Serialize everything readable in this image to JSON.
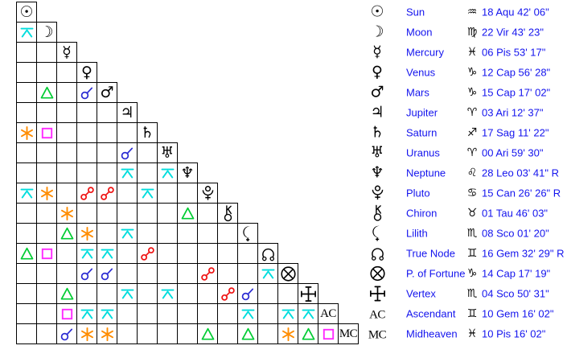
{
  "aspect_colors": {
    "conjunction": "#2a2ad2",
    "opposition": "#ee1111",
    "trine": "#00cc33",
    "square": "#ff2bff",
    "sextile": "#ff8c00",
    "quincunx": "#00dddd"
  },
  "grid": {
    "planets": [
      {
        "id": "sun",
        "name": "Sun",
        "glyph": "char:☉"
      },
      {
        "id": "moon",
        "name": "Moon",
        "glyph": "char:☽"
      },
      {
        "id": "mercury",
        "name": "Mercury",
        "glyph": "char:☿"
      },
      {
        "id": "venus",
        "name": "Venus",
        "glyph": "char:♀"
      },
      {
        "id": "mars",
        "name": "Mars",
        "glyph": "char:♂"
      },
      {
        "id": "jupiter",
        "name": "Jupiter",
        "glyph": "char:♃"
      },
      {
        "id": "saturn",
        "name": "Saturn",
        "glyph": "char:♄"
      },
      {
        "id": "uranus",
        "name": "Uranus",
        "glyph": "char:♅"
      },
      {
        "id": "neptune",
        "name": "Neptune",
        "glyph": "char:♆"
      },
      {
        "id": "pluto",
        "name": "Pluto",
        "glyph": "svg:pluto"
      },
      {
        "id": "chiron",
        "name": "Chiron",
        "glyph": "svg:chiron"
      },
      {
        "id": "lilith",
        "name": "Lilith",
        "glyph": "svg:lilith"
      },
      {
        "id": "true-node",
        "name": "True Node",
        "glyph": "svg:truenode"
      },
      {
        "id": "fortune",
        "name": "P. of Fortune",
        "glyph": "svg:fortune"
      },
      {
        "id": "vertex",
        "name": "Vertex",
        "glyph": "svg:vertex"
      },
      {
        "id": "ascendant",
        "name": "Ascendant",
        "glyph": "text:AC"
      },
      {
        "id": "midheaven",
        "name": "Midheaven",
        "glyph": "text:MC"
      }
    ]
  },
  "legend": {
    "rows": [
      {
        "sign": "♒",
        "position": "18 Aqu 42' 06\""
      },
      {
        "sign": "♍",
        "position": "22 Vir 43' 23\""
      },
      {
        "sign": "♓",
        "position": "06 Pis 53' 17\""
      },
      {
        "sign": "♑",
        "position": "12 Cap 56' 28\""
      },
      {
        "sign": "♑",
        "position": "15 Cap 17' 02\""
      },
      {
        "sign": "♈",
        "position": "03 Ari 12' 37\""
      },
      {
        "sign": "♐",
        "position": "17 Sag 11' 22\""
      },
      {
        "sign": "♈",
        "position": "00 Ari 59' 30\""
      },
      {
        "sign": "♌",
        "position": "28 Leo 03' 41\" R"
      },
      {
        "sign": "♋",
        "position": "15 Can 26' 26\" R"
      },
      {
        "sign": "♉",
        "position": "01 Tau 46' 03\""
      },
      {
        "sign": "♏",
        "position": "08 Sco 01' 20\""
      },
      {
        "sign": "♊",
        "position": "16 Gem 32' 29\" R"
      },
      {
        "sign": "♑",
        "position": "14 Cap 17' 19\""
      },
      {
        "sign": "♏",
        "position": "04 Sco 50' 31\""
      },
      {
        "sign": "♊",
        "position": "10 Gem 16' 02\""
      },
      {
        "sign": "♓",
        "position": "10 Pis 16' 02\""
      }
    ]
  },
  "chart_data": {
    "type": "table",
    "title": "Natal planet positions with triangular aspect grid (aspectarian)",
    "positions": [
      {
        "planet": "Sun",
        "value": "18 Aqu 42' 06\""
      },
      {
        "planet": "Moon",
        "value": "22 Vir 43' 23\""
      },
      {
        "planet": "Mercury",
        "value": "06 Pis 53' 17\""
      },
      {
        "planet": "Venus",
        "value": "12 Cap 56' 28\""
      },
      {
        "planet": "Mars",
        "value": "15 Cap 17' 02\""
      },
      {
        "planet": "Jupiter",
        "value": "03 Ari 12' 37\""
      },
      {
        "planet": "Saturn",
        "value": "17 Sag 11' 22\""
      },
      {
        "planet": "Uranus",
        "value": "00 Ari 59' 30\""
      },
      {
        "planet": "Neptune",
        "value": "28 Leo 03' 41\" R"
      },
      {
        "planet": "Pluto",
        "value": "15 Can 26' 26\" R"
      },
      {
        "planet": "Chiron",
        "value": "01 Tau 46' 03\""
      },
      {
        "planet": "Lilith",
        "value": "08 Sco 01' 20\""
      },
      {
        "planet": "True Node",
        "value": "16 Gem 32' 29\" R"
      },
      {
        "planet": "P. of Fortune",
        "value": "14 Cap 17' 19\""
      },
      {
        "planet": "Vertex",
        "value": "04 Sco 50' 31\""
      },
      {
        "planet": "Ascendant",
        "value": "10 Gem 16' 02\""
      },
      {
        "planet": "Midheaven",
        "value": "10 Pis 16' 02\""
      }
    ],
    "aspects": [
      {
        "row": 1,
        "col": 0,
        "aspect": "quincunx",
        "between": [
          "Moon",
          "Sun"
        ]
      },
      {
        "row": 4,
        "col": 1,
        "aspect": "trine",
        "between": [
          "Mars",
          "Moon"
        ]
      },
      {
        "row": 4,
        "col": 3,
        "aspect": "conjunction",
        "between": [
          "Mars",
          "Venus"
        ]
      },
      {
        "row": 6,
        "col": 0,
        "aspect": "sextile",
        "between": [
          "Saturn",
          "Sun"
        ]
      },
      {
        "row": 6,
        "col": 1,
        "aspect": "square",
        "between": [
          "Saturn",
          "Moon"
        ]
      },
      {
        "row": 7,
        "col": 5,
        "aspect": "conjunction",
        "between": [
          "Uranus",
          "Jupiter"
        ]
      },
      {
        "row": 8,
        "col": 5,
        "aspect": "quincunx",
        "between": [
          "Neptune",
          "Jupiter"
        ]
      },
      {
        "row": 8,
        "col": 7,
        "aspect": "quincunx",
        "between": [
          "Neptune",
          "Uranus"
        ]
      },
      {
        "row": 9,
        "col": 0,
        "aspect": "quincunx",
        "between": [
          "Pluto",
          "Sun"
        ]
      },
      {
        "row": 9,
        "col": 1,
        "aspect": "sextile",
        "between": [
          "Pluto",
          "Moon"
        ]
      },
      {
        "row": 9,
        "col": 3,
        "aspect": "opposition",
        "between": [
          "Pluto",
          "Venus"
        ]
      },
      {
        "row": 9,
        "col": 4,
        "aspect": "opposition",
        "between": [
          "Pluto",
          "Mars"
        ]
      },
      {
        "row": 9,
        "col": 6,
        "aspect": "quincunx",
        "between": [
          "Pluto",
          "Saturn"
        ]
      },
      {
        "row": 10,
        "col": 2,
        "aspect": "sextile",
        "between": [
          "Chiron",
          "Mercury"
        ]
      },
      {
        "row": 10,
        "col": 8,
        "aspect": "trine",
        "between": [
          "Chiron",
          "Neptune"
        ]
      },
      {
        "row": 11,
        "col": 2,
        "aspect": "trine",
        "between": [
          "Lilith",
          "Mercury"
        ]
      },
      {
        "row": 11,
        "col": 3,
        "aspect": "sextile",
        "between": [
          "Lilith",
          "Venus"
        ]
      },
      {
        "row": 11,
        "col": 5,
        "aspect": "quincunx",
        "between": [
          "Lilith",
          "Jupiter"
        ]
      },
      {
        "row": 12,
        "col": 0,
        "aspect": "trine",
        "between": [
          "True Node",
          "Sun"
        ]
      },
      {
        "row": 12,
        "col": 1,
        "aspect": "square",
        "between": [
          "True Node",
          "Moon"
        ]
      },
      {
        "row": 12,
        "col": 3,
        "aspect": "quincunx",
        "between": [
          "True Node",
          "Venus"
        ]
      },
      {
        "row": 12,
        "col": 4,
        "aspect": "quincunx",
        "between": [
          "True Node",
          "Mars"
        ]
      },
      {
        "row": 12,
        "col": 6,
        "aspect": "opposition",
        "between": [
          "True Node",
          "Saturn"
        ]
      },
      {
        "row": 13,
        "col": 3,
        "aspect": "conjunction",
        "between": [
          "P. of Fortune",
          "Venus"
        ]
      },
      {
        "row": 13,
        "col": 4,
        "aspect": "conjunction",
        "between": [
          "P. of Fortune",
          "Mars"
        ]
      },
      {
        "row": 13,
        "col": 9,
        "aspect": "opposition",
        "between": [
          "P. of Fortune",
          "Pluto"
        ]
      },
      {
        "row": 13,
        "col": 12,
        "aspect": "quincunx",
        "between": [
          "P. of Fortune",
          "True Node"
        ]
      },
      {
        "row": 14,
        "col": 2,
        "aspect": "trine",
        "between": [
          "Vertex",
          "Mercury"
        ]
      },
      {
        "row": 14,
        "col": 5,
        "aspect": "quincunx",
        "between": [
          "Vertex",
          "Jupiter"
        ]
      },
      {
        "row": 14,
        "col": 7,
        "aspect": "quincunx",
        "between": [
          "Vertex",
          "Uranus"
        ]
      },
      {
        "row": 14,
        "col": 10,
        "aspect": "opposition",
        "between": [
          "Vertex",
          "Chiron"
        ]
      },
      {
        "row": 14,
        "col": 11,
        "aspect": "conjunction",
        "between": [
          "Vertex",
          "Lilith"
        ]
      },
      {
        "row": 15,
        "col": 2,
        "aspect": "square",
        "between": [
          "Ascendant",
          "Mercury"
        ]
      },
      {
        "row": 15,
        "col": 3,
        "aspect": "quincunx",
        "between": [
          "Ascendant",
          "Venus"
        ]
      },
      {
        "row": 15,
        "col": 4,
        "aspect": "quincunx",
        "between": [
          "Ascendant",
          "Mars"
        ]
      },
      {
        "row": 15,
        "col": 11,
        "aspect": "quincunx",
        "between": [
          "Ascendant",
          "Lilith"
        ]
      },
      {
        "row": 15,
        "col": 13,
        "aspect": "quincunx",
        "between": [
          "Ascendant",
          "P. of Fortune"
        ]
      },
      {
        "row": 15,
        "col": 14,
        "aspect": "quincunx",
        "between": [
          "Ascendant",
          "Vertex"
        ]
      },
      {
        "row": 16,
        "col": 2,
        "aspect": "conjunction",
        "between": [
          "Midheaven",
          "Mercury"
        ]
      },
      {
        "row": 16,
        "col": 3,
        "aspect": "sextile",
        "between": [
          "Midheaven",
          "Venus"
        ]
      },
      {
        "row": 16,
        "col": 4,
        "aspect": "sextile",
        "between": [
          "Midheaven",
          "Mars"
        ]
      },
      {
        "row": 16,
        "col": 9,
        "aspect": "trine",
        "between": [
          "Midheaven",
          "Pluto"
        ]
      },
      {
        "row": 16,
        "col": 11,
        "aspect": "trine",
        "between": [
          "Midheaven",
          "Lilith"
        ]
      },
      {
        "row": 16,
        "col": 13,
        "aspect": "sextile",
        "between": [
          "Midheaven",
          "P. of Fortune"
        ]
      },
      {
        "row": 16,
        "col": 14,
        "aspect": "trine",
        "between": [
          "Midheaven",
          "Vertex"
        ]
      },
      {
        "row": 16,
        "col": 15,
        "aspect": "square",
        "between": [
          "Midheaven",
          "Ascendant"
        ]
      }
    ]
  }
}
